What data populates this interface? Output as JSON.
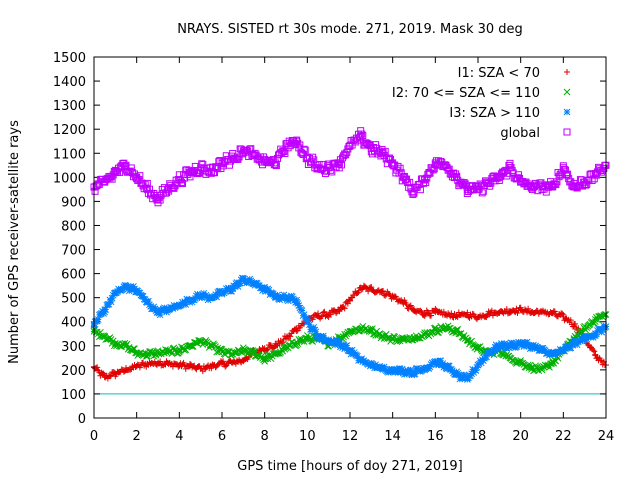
{
  "chart_data": {
    "type": "scatter",
    "title": "NRAYS. SISTED rt 30s mode. 271, 2019. Mask 30 deg",
    "xlabel": "GPS time [hours of doy 271, 2019]",
    "ylabel": "Number of GPS receiver-satellite rays",
    "xlim": [
      0,
      24
    ],
    "ylim": [
      0,
      1500
    ],
    "x_ticks": [
      0,
      2,
      4,
      6,
      8,
      10,
      12,
      14,
      16,
      18,
      20,
      22,
      24
    ],
    "y_ticks": [
      0,
      100,
      200,
      300,
      400,
      500,
      600,
      700,
      800,
      900,
      1000,
      1100,
      1200,
      1300,
      1400,
      1500
    ],
    "grid": false,
    "legend_position": "top-right",
    "reference_line": {
      "y": 100,
      "color": "#00c0c0"
    },
    "series": [
      {
        "name": "I1: SZA < 70",
        "color": "#e00000",
        "marker": "+",
        "x": [
          0,
          0.5,
          1,
          1.5,
          2,
          2.5,
          3,
          3.5,
          4,
          4.5,
          5,
          5.5,
          6,
          6.5,
          7,
          7.5,
          8,
          8.5,
          9,
          9.5,
          10,
          10.5,
          11,
          11.5,
          12,
          12.5,
          13,
          13.5,
          14,
          14.5,
          15,
          15.5,
          16,
          16.5,
          17,
          17.5,
          18,
          18.5,
          19,
          19.5,
          20,
          20.5,
          21,
          21.5,
          22,
          22.5,
          23,
          23.5,
          24
        ],
        "y": [
          210,
          170,
          185,
          200,
          215,
          225,
          230,
          225,
          220,
          215,
          205,
          215,
          225,
          230,
          240,
          270,
          290,
          300,
          330,
          370,
          410,
          425,
          430,
          445,
          490,
          540,
          535,
          525,
          505,
          480,
          445,
          435,
          440,
          430,
          425,
          430,
          420,
          435,
          440,
          445,
          450,
          440,
          440,
          435,
          420,
          390,
          330,
          260,
          220
        ]
      },
      {
        "name": "I2: 70 <= SZA <= 110",
        "color": "#00b000",
        "marker": "x",
        "x": [
          0,
          0.5,
          1,
          1.5,
          2,
          2.5,
          3,
          3.5,
          4,
          4.5,
          5,
          5.5,
          6,
          6.5,
          7,
          7.5,
          8,
          8.5,
          9,
          9.5,
          10,
          10.5,
          11,
          11.5,
          12,
          12.5,
          13,
          13.5,
          14,
          14.5,
          15,
          15.5,
          16,
          16.5,
          17,
          17.5,
          18,
          18.5,
          19,
          19.5,
          20,
          20.5,
          21,
          21.5,
          22,
          22.5,
          23,
          23.5,
          24
        ],
        "y": [
          360,
          340,
          310,
          300,
          270,
          265,
          270,
          275,
          280,
          300,
          320,
          300,
          275,
          265,
          280,
          270,
          245,
          265,
          290,
          315,
          330,
          330,
          310,
          330,
          360,
          370,
          365,
          340,
          330,
          325,
          335,
          345,
          365,
          375,
          360,
          325,
          290,
          270,
          280,
          250,
          230,
          210,
          200,
          230,
          280,
          330,
          370,
          410,
          430
        ]
      },
      {
        "name": "I3: SZA > 110",
        "color": "#0080ff",
        "marker": "*",
        "x": [
          0,
          0.5,
          1,
          1.5,
          2,
          2.5,
          3,
          3.5,
          4,
          4.5,
          5,
          5.5,
          6,
          6.5,
          7,
          7.5,
          8,
          8.5,
          9,
          9.5,
          10,
          10.5,
          11,
          11.5,
          12,
          12.5,
          13,
          13.5,
          14,
          14.5,
          15,
          15.5,
          16,
          16.5,
          17,
          17.5,
          18,
          18.5,
          19,
          19.5,
          20,
          20.5,
          21,
          21.5,
          22,
          22.5,
          23,
          23.5,
          24
        ],
        "y": [
          390,
          450,
          520,
          545,
          530,
          480,
          440,
          450,
          470,
          490,
          510,
          500,
          520,
          540,
          575,
          560,
          535,
          505,
          500,
          490,
          400,
          340,
          320,
          310,
          280,
          240,
          220,
          205,
          200,
          195,
          190,
          205,
          235,
          215,
          180,
          160,
          220,
          270,
          300,
          300,
          310,
          300,
          280,
          265,
          280,
          310,
          330,
          350,
          380
        ]
      },
      {
        "name": "global",
        "color": "#c000ff",
        "marker": "square",
        "x": [
          0,
          0.5,
          1,
          1.5,
          2,
          2.5,
          3,
          3.5,
          4,
          4.5,
          5,
          5.5,
          6,
          6.5,
          7,
          7.5,
          8,
          8.5,
          9,
          9.5,
          10,
          10.5,
          11,
          11.5,
          12,
          12.5,
          13,
          13.5,
          14,
          14.5,
          15,
          15.5,
          16,
          16.5,
          17,
          17.5,
          18,
          18.5,
          19,
          19.5,
          20,
          20.5,
          21,
          21.5,
          22,
          22.5,
          23,
          23.5,
          24
        ],
        "y": [
          960,
          980,
          1020,
          1050,
          1000,
          950,
          910,
          955,
          990,
          1020,
          1040,
          1025,
          1060,
          1080,
          1110,
          1090,
          1065,
          1060,
          1130,
          1150,
          1080,
          1040,
          1040,
          1060,
          1130,
          1170,
          1120,
          1100,
          1060,
          1000,
          940,
          990,
          1060,
          1050,
          1000,
          950,
          950,
          975,
          1000,
          1040,
          980,
          960,
          960,
          960,
          1040,
          960,
          980,
          1010,
          1050
        ]
      }
    ]
  }
}
